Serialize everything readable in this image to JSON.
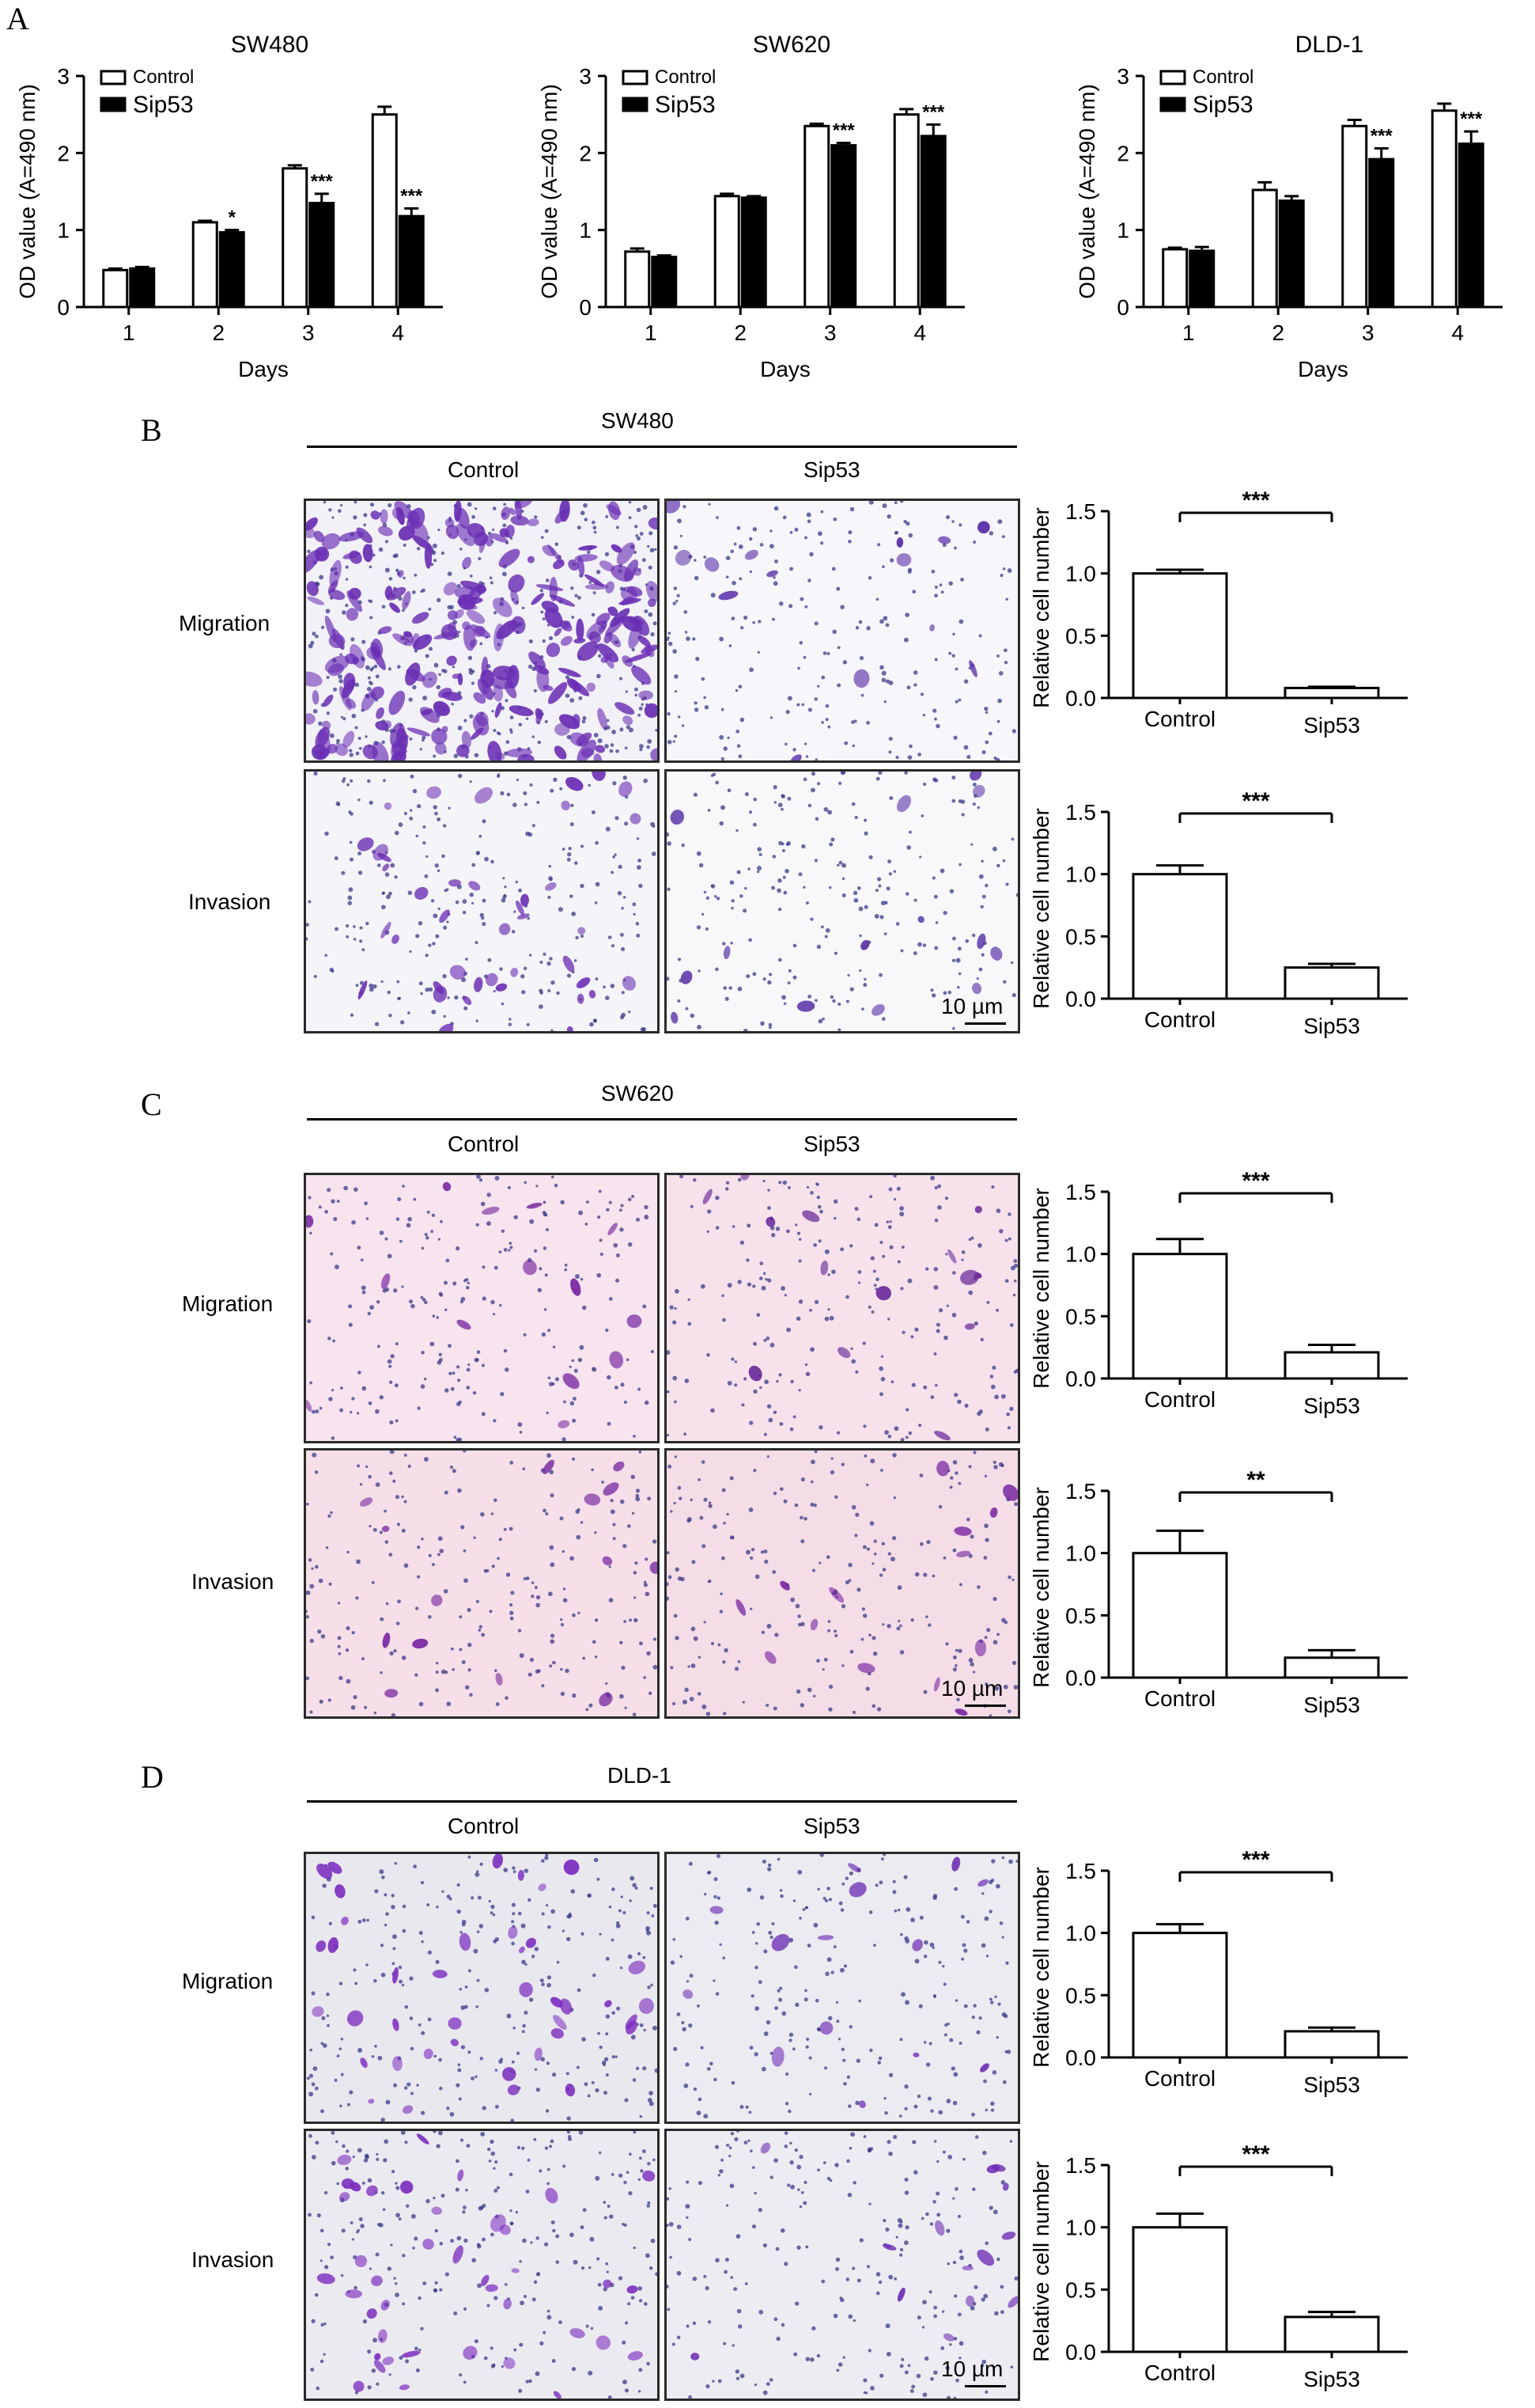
{
  "panels": {
    "A": {
      "letter": "A"
    },
    "B": {
      "letter": "B",
      "group": "SW480",
      "col1": "Control",
      "col2": "Sip53",
      "row1": "Migration",
      "row2": "Invasion",
      "scale": "10 µm"
    },
    "C": {
      "letter": "C",
      "group": "SW620",
      "col1": "Control",
      "col2": "Sip53",
      "row1": "Migration",
      "row2": "Invasion",
      "scale": "10 µm"
    },
    "D": {
      "letter": "D",
      "group": "DLD-1",
      "col1": "Control",
      "col2": "Sip53",
      "row1": "Migration",
      "row2": "Invasion",
      "scale": "10 µm"
    }
  },
  "micrographs": {
    "SW480-mig-ctrl": {
      "bg": "#f3f1f8",
      "cell": "#6a2fb4",
      "density": "very-high"
    },
    "SW480-mig-sip": {
      "bg": "#f7f6fb",
      "cell": "#5a2ea8",
      "density": "low"
    },
    "SW480-inv-ctrl": {
      "bg": "#f5f4f8",
      "cell": "#6d31b5",
      "density": "medium"
    },
    "SW480-inv-sip": {
      "bg": "#f8f8fb",
      "cell": "#5b35a8",
      "density": "low"
    },
    "SW620-mig-ctrl": {
      "bg": "#f7e4ee",
      "cell": "#7a2aa2",
      "density": "low"
    },
    "SW620-mig-sip": {
      "bg": "#f7e2ec",
      "cell": "#6a2a9a",
      "density": "low"
    },
    "SW620-inv-ctrl": {
      "bg": "#f6dfe8",
      "cell": "#7a2aa2",
      "density": "low"
    },
    "SW620-inv-sip": {
      "bg": "#f5dde7",
      "cell": "#7a2aa2",
      "density": "low"
    },
    "DLD1-mig-ctrl": {
      "bg": "#e9e8ef",
      "cell": "#7d2fc0",
      "density": "medium"
    },
    "DLD1-mig-sip": {
      "bg": "#ecebf1",
      "cell": "#6f2fb6",
      "density": "low"
    },
    "DLD1-inv-ctrl": {
      "bg": "#eceaf1",
      "cell": "#7d2fc0",
      "density": "medium"
    },
    "DLD1-inv-sip": {
      "bg": "#edecf2",
      "cell": "#6f2fb6",
      "density": "low"
    }
  },
  "chart_data": [
    {
      "id": "A1",
      "type": "bar",
      "title": "SW480",
      "xlabel": "Days",
      "ylabel": "OD value (A=490 nm)",
      "categories": [
        "1",
        "2",
        "3",
        "4"
      ],
      "ylim": [
        0,
        3
      ],
      "yticks": [
        "0",
        "1",
        "2",
        "3"
      ],
      "legend": [
        "Control",
        "Sip53"
      ],
      "series": [
        {
          "name": "Control",
          "values": [
            0.48,
            1.1,
            1.8,
            2.5
          ],
          "errors": [
            0.02,
            0.02,
            0.04,
            0.1
          ]
        },
        {
          "name": "Sip53",
          "values": [
            0.5,
            0.97,
            1.35,
            1.18
          ],
          "errors": [
            0.02,
            0.03,
            0.12,
            0.1
          ]
        }
      ],
      "annotations": [
        "",
        "*",
        "***",
        "***"
      ]
    },
    {
      "id": "A2",
      "type": "bar",
      "title": "SW620",
      "xlabel": "Days",
      "ylabel": "OD value (A=490 nm)",
      "categories": [
        "1",
        "2",
        "3",
        "4"
      ],
      "ylim": [
        0,
        3
      ],
      "yticks": [
        "0",
        "1",
        "2",
        "3"
      ],
      "legend": [
        "Control",
        "Sip53"
      ],
      "series": [
        {
          "name": "Control",
          "values": [
            0.72,
            1.44,
            2.35,
            2.5
          ],
          "errors": [
            0.04,
            0.03,
            0.03,
            0.07
          ]
        },
        {
          "name": "Sip53",
          "values": [
            0.65,
            1.42,
            2.1,
            2.22
          ],
          "errors": [
            0.02,
            0.02,
            0.03,
            0.15
          ]
        }
      ],
      "annotations": [
        "",
        "",
        "***",
        "***"
      ]
    },
    {
      "id": "A3",
      "type": "bar",
      "title": "DLD-1",
      "xlabel": "Days",
      "ylabel": "OD value (A=490 nm)",
      "categories": [
        "1",
        "2",
        "3",
        "4"
      ],
      "ylim": [
        0,
        3
      ],
      "yticks": [
        "0",
        "1",
        "2",
        "3"
      ],
      "legend": [
        "Control",
        "Sip53"
      ],
      "series": [
        {
          "name": "Control",
          "values": [
            0.75,
            1.52,
            2.35,
            2.55
          ],
          "errors": [
            0.02,
            0.1,
            0.08,
            0.09
          ]
        },
        {
          "name": "Sip53",
          "values": [
            0.73,
            1.38,
            1.92,
            2.12
          ],
          "errors": [
            0.05,
            0.06,
            0.14,
            0.16
          ]
        }
      ],
      "annotations": [
        "",
        "",
        "***",
        "***"
      ]
    },
    {
      "id": "B1",
      "type": "bar",
      "ylabel": "Relative cell number",
      "categories": [
        "Control",
        "Sip53"
      ],
      "values": [
        1.0,
        0.08
      ],
      "errors": [
        0.03,
        0.01
      ],
      "ylim": [
        0,
        1.5
      ],
      "yticks": [
        "0.0",
        "0.5",
        "1.0",
        "1.5"
      ],
      "significance": "***"
    },
    {
      "id": "B2",
      "type": "bar",
      "ylabel": "Relative cell number",
      "categories": [
        "Control",
        "Sip53"
      ],
      "values": [
        1.0,
        0.25
      ],
      "errors": [
        0.07,
        0.03
      ],
      "ylim": [
        0,
        1.5
      ],
      "yticks": [
        "0.0",
        "0.5",
        "1.0",
        "1.5"
      ],
      "significance": "***"
    },
    {
      "id": "C1",
      "type": "bar",
      "ylabel": "Relative cell number",
      "categories": [
        "Control",
        "Sip53"
      ],
      "values": [
        1.0,
        0.21
      ],
      "errors": [
        0.12,
        0.06
      ],
      "ylim": [
        0,
        1.5
      ],
      "yticks": [
        "0.0",
        "0.5",
        "1.0",
        "1.5"
      ],
      "significance": "***"
    },
    {
      "id": "C2",
      "type": "bar",
      "ylabel": "Relative cell number",
      "categories": [
        "Control",
        "Sip53"
      ],
      "values": [
        1.0,
        0.16
      ],
      "errors": [
        0.18,
        0.06
      ],
      "ylim": [
        0,
        1.5
      ],
      "yticks": [
        "0.0",
        "0.5",
        "1.0",
        "1.5"
      ],
      "significance": "**"
    },
    {
      "id": "D1",
      "type": "bar",
      "ylabel": "Relative cell number",
      "categories": [
        "Control",
        "Sip53"
      ],
      "values": [
        1.0,
        0.21
      ],
      "errors": [
        0.07,
        0.03
      ],
      "ylim": [
        0,
        1.5
      ],
      "yticks": [
        "0.0",
        "0.5",
        "1.0",
        "1.5"
      ],
      "significance": "***"
    },
    {
      "id": "D2",
      "type": "bar",
      "ylabel": "Relative cell number",
      "categories": [
        "Control",
        "Sip53"
      ],
      "values": [
        1.0,
        0.28
      ],
      "errors": [
        0.11,
        0.04
      ],
      "ylim": [
        0,
        1.5
      ],
      "yticks": [
        "0.0",
        "0.5",
        "1.0",
        "1.5"
      ],
      "significance": "***"
    }
  ]
}
